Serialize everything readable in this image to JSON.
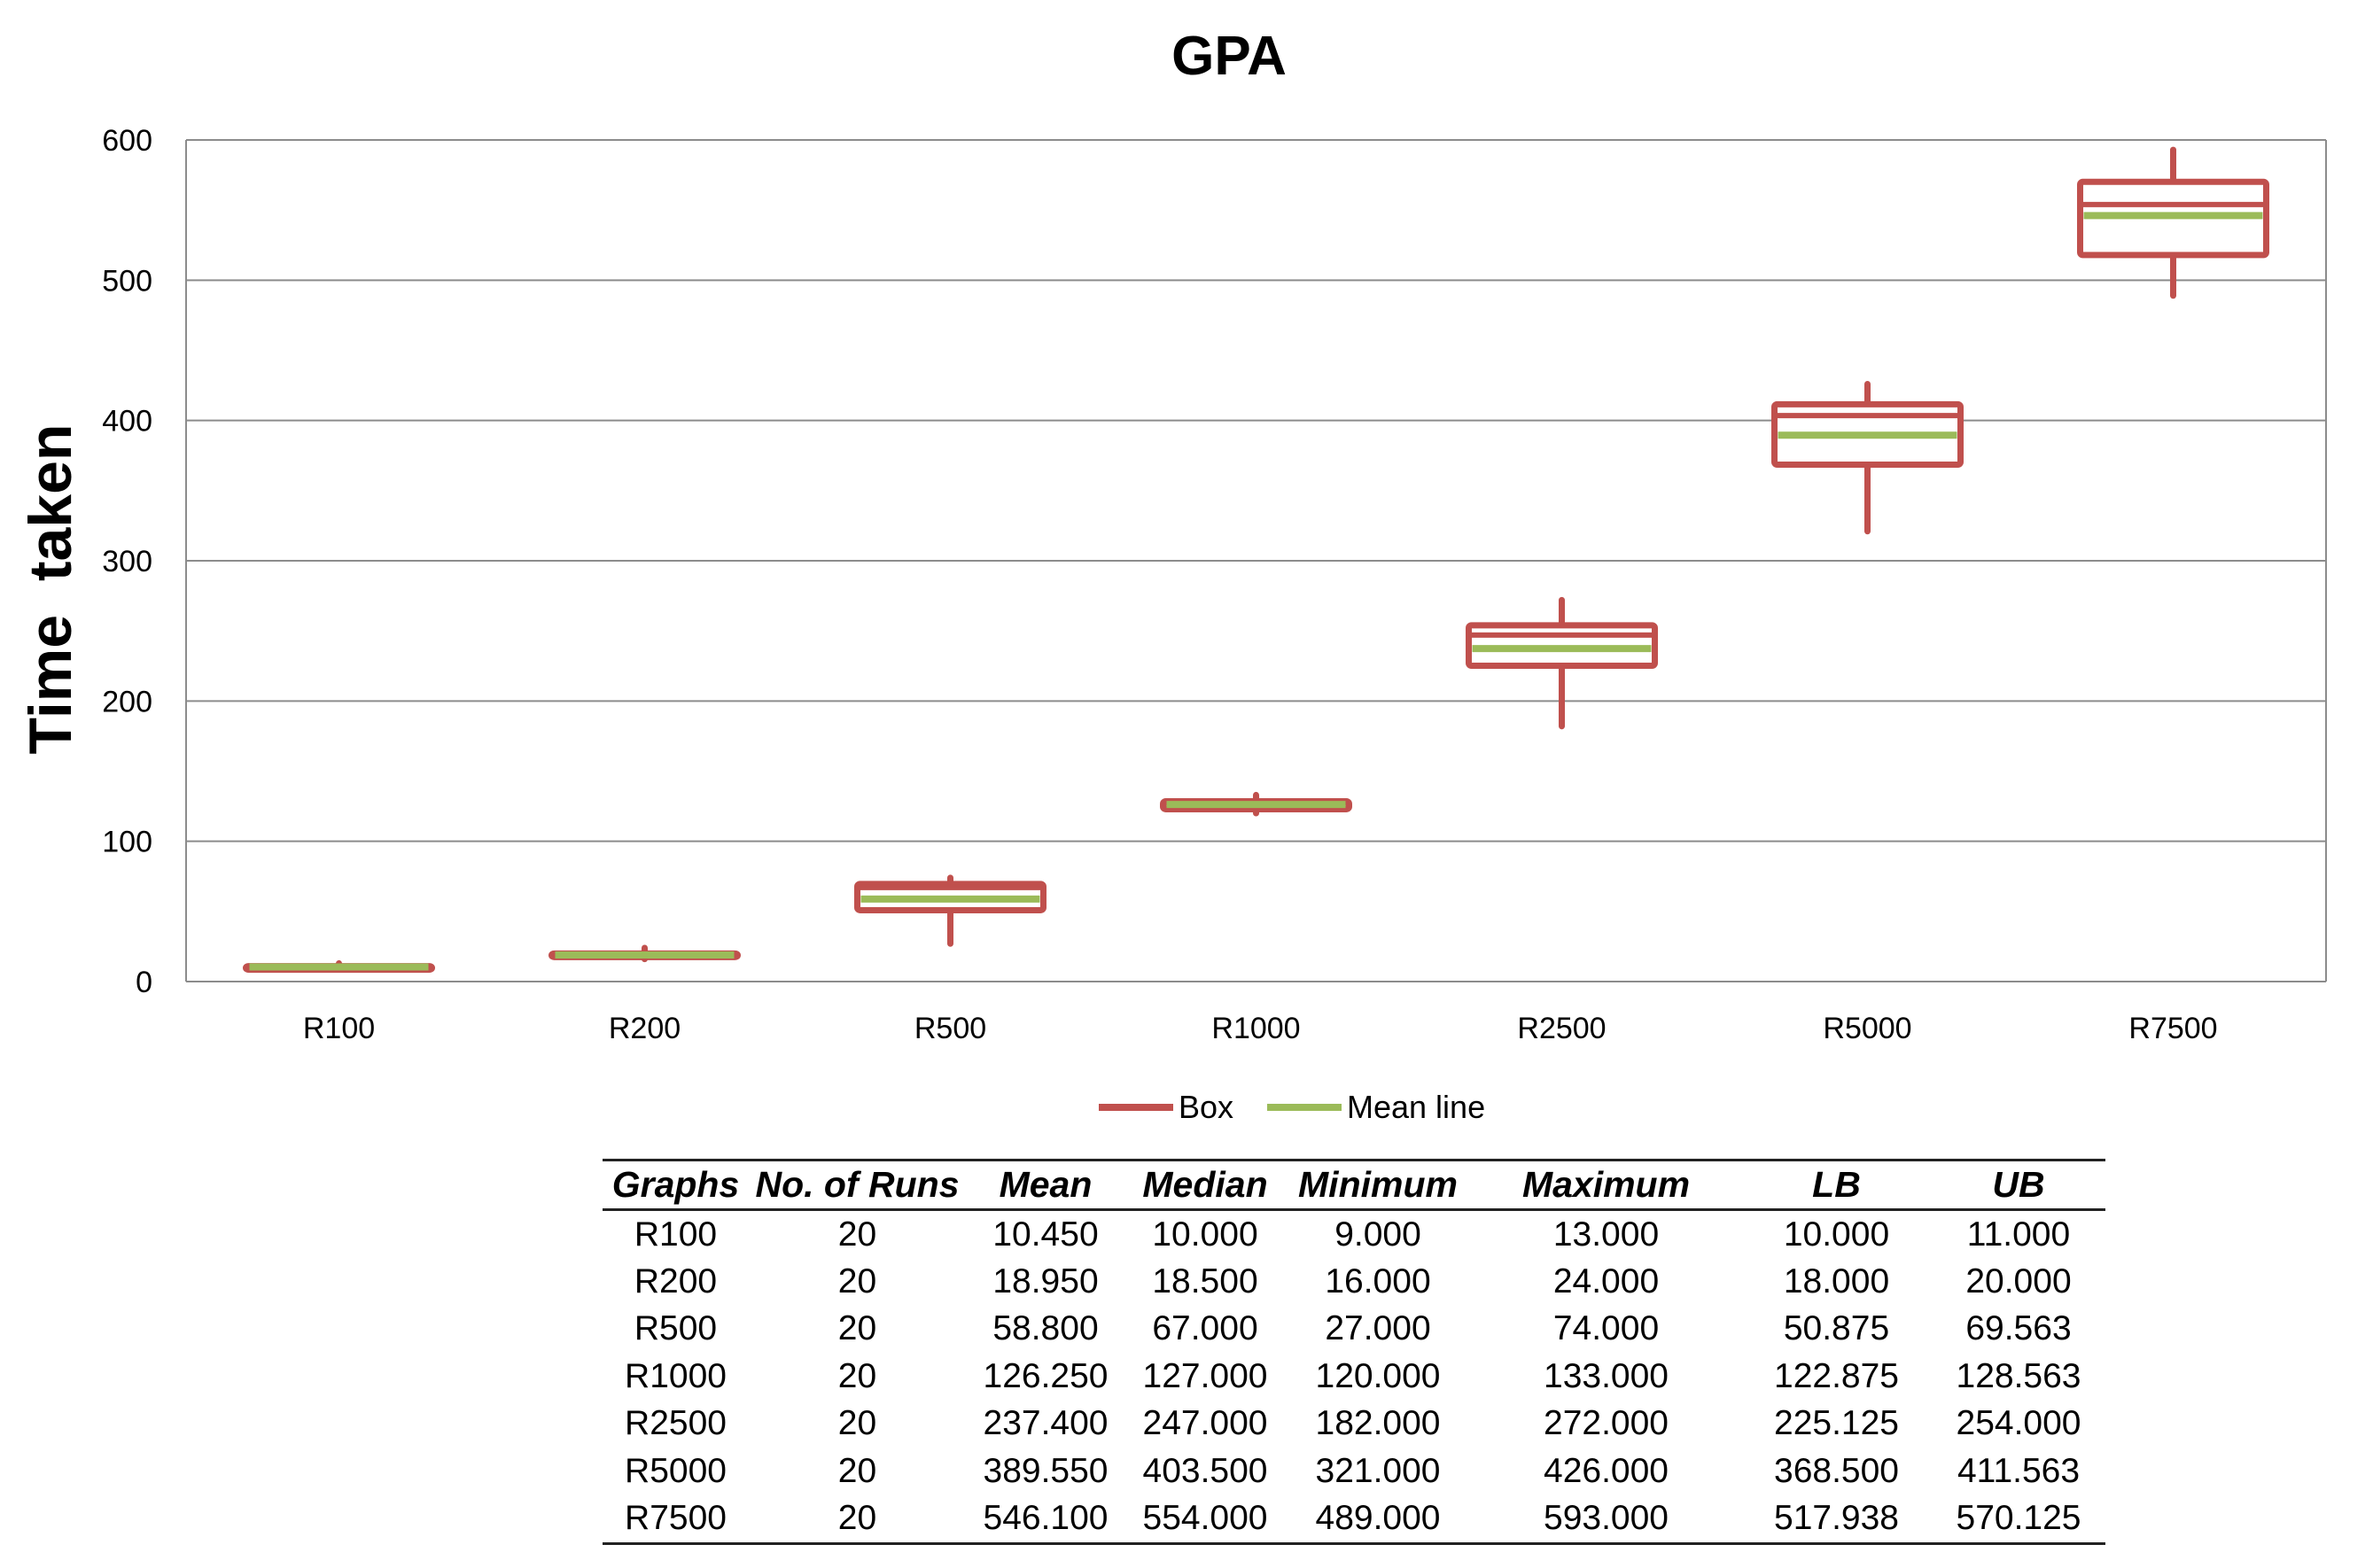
{
  "chart_data": {
    "type": "box",
    "title": "GPA",
    "ylabel": "Time  taken",
    "xlabel": "",
    "ylim": [
      0,
      600
    ],
    "yticks": [
      0,
      100,
      200,
      300,
      400,
      500,
      600
    ],
    "grid": true,
    "categories": [
      "R100",
      "R200",
      "R500",
      "R1000",
      "R2500",
      "R5000",
      "R7500"
    ],
    "series": [
      {
        "name": "Box",
        "color": "#c0504d",
        "boxes": [
          {
            "min": 9,
            "lb": 10,
            "median": 10,
            "ub": 11,
            "max": 13
          },
          {
            "min": 16,
            "lb": 18,
            "median": 18.5,
            "ub": 20,
            "max": 24
          },
          {
            "min": 27,
            "lb": 50.875,
            "median": 67,
            "ub": 69.563,
            "max": 74
          },
          {
            "min": 120,
            "lb": 122.875,
            "median": 127,
            "ub": 128.563,
            "max": 133
          },
          {
            "min": 182,
            "lb": 225.125,
            "median": 247,
            "ub": 254,
            "max": 272
          },
          {
            "min": 321,
            "lb": 368.5,
            "median": 403.5,
            "ub": 411.563,
            "max": 426
          },
          {
            "min": 489,
            "lb": 517.938,
            "median": 554,
            "ub": 570.125,
            "max": 593
          }
        ]
      },
      {
        "name": "Mean line",
        "color": "#9bbb59",
        "values": [
          10.45,
          18.95,
          58.8,
          126.25,
          237.4,
          389.55,
          546.1
        ]
      }
    ],
    "legend_position": "bottom"
  },
  "table": {
    "headers": [
      "Graphs",
      "No. of Runs",
      "Mean",
      "Median",
      "Minimum",
      "Maximum",
      "LB",
      "UB"
    ],
    "rows": [
      [
        "R100",
        "20",
        "10.450",
        "10.000",
        "9.000",
        "13.000",
        "10.000",
        "11.000"
      ],
      [
        "R200",
        "20",
        "18.950",
        "18.500",
        "16.000",
        "24.000",
        "18.000",
        "20.000"
      ],
      [
        "R500",
        "20",
        "58.800",
        "67.000",
        "27.000",
        "74.000",
        "50.875",
        "69.563"
      ],
      [
        "R1000",
        "20",
        "126.250",
        "127.000",
        "120.000",
        "133.000",
        "122.875",
        "128.563"
      ],
      [
        "R2500",
        "20",
        "237.400",
        "247.000",
        "182.000",
        "272.000",
        "225.125",
        "254.000"
      ],
      [
        "R5000",
        "20",
        "389.550",
        "403.500",
        "321.000",
        "426.000",
        "368.500",
        "411.563"
      ],
      [
        "R7500",
        "20",
        "546.100",
        "554.000",
        "489.000",
        "593.000",
        "517.938",
        "570.125"
      ]
    ]
  }
}
